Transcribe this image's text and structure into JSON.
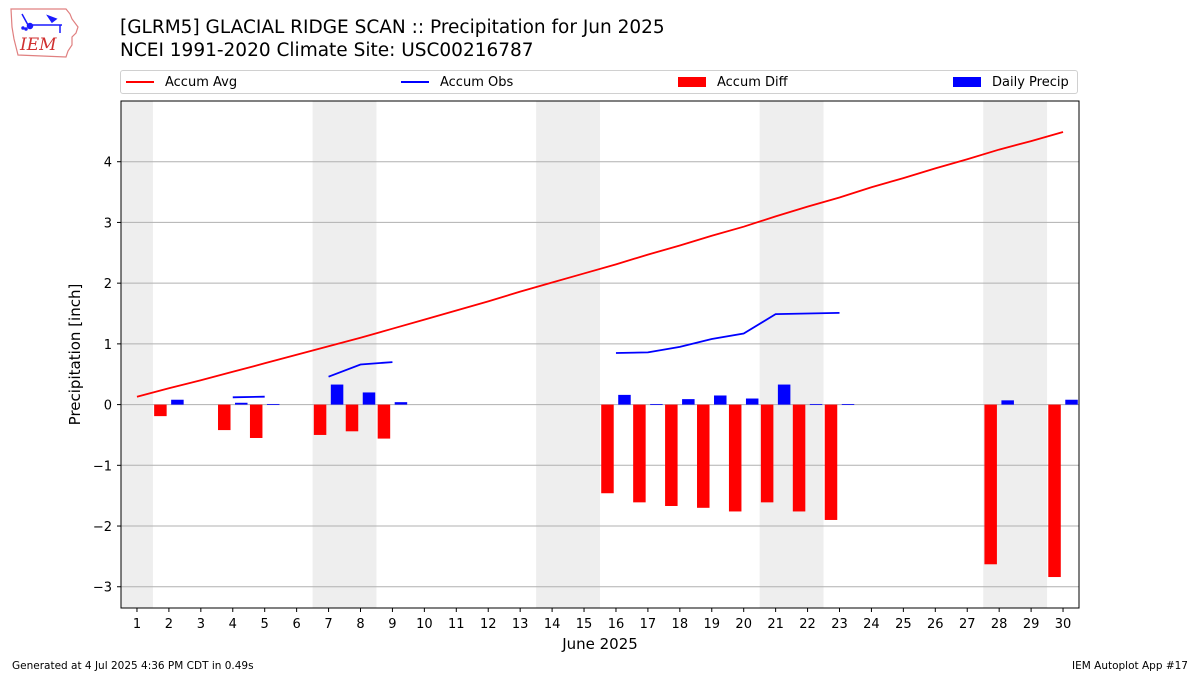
{
  "header": {
    "title_line1": "[GLRM5] GLACIAL RIDGE SCAN :: Precipitation for Jun 2025",
    "title_line2": "NCEI 1991-2020 Climate Site: USC00216787"
  },
  "logo": {
    "text": "IEM",
    "icon": "iowa-state-outline-logo"
  },
  "footer": {
    "left": "Generated at 4 Jul 2025 4:36 PM CDT in 0.49s",
    "right": "IEM Autoplot App #17"
  },
  "colors": {
    "avg": "#ff0000",
    "obs": "#0000ff",
    "diff": "#ff0000",
    "daily": "#0000ff",
    "weekend": "#eeeeee",
    "grid": "#b0b0b0"
  },
  "chart_data": {
    "type": "bar",
    "xlabel": "June 2025",
    "ylabel": "Precipitation [inch]",
    "xlim": [
      0.5,
      30.5
    ],
    "ylim": [
      -3.35,
      5.0
    ],
    "x_ticks": [
      1,
      2,
      3,
      4,
      5,
      6,
      7,
      8,
      9,
      10,
      11,
      12,
      13,
      14,
      15,
      16,
      17,
      18,
      19,
      20,
      21,
      22,
      23,
      24,
      25,
      26,
      27,
      28,
      29,
      30
    ],
    "y_ticks": [
      -3,
      -2,
      -1,
      0,
      1,
      2,
      3,
      4
    ],
    "grid": true,
    "legend_placement": "top",
    "weekend_days": [
      1,
      7,
      8,
      14,
      15,
      21,
      22,
      28,
      29
    ],
    "series": [
      {
        "name": "Accum Avg",
        "kind": "line",
        "x": [
          1,
          2,
          3,
          4,
          5,
          6,
          7,
          8,
          9,
          10,
          11,
          12,
          13,
          14,
          15,
          16,
          17,
          18,
          19,
          20,
          21,
          22,
          23,
          24,
          25,
          26,
          27,
          28,
          29,
          30
        ],
        "values": [
          0.13,
          0.27,
          0.4,
          0.54,
          0.68,
          0.82,
          0.96,
          1.1,
          1.25,
          1.4,
          1.55,
          1.7,
          1.86,
          2.01,
          2.16,
          2.31,
          2.47,
          2.62,
          2.78,
          2.93,
          3.1,
          3.26,
          3.41,
          3.58,
          3.73,
          3.89,
          4.04,
          4.2,
          4.34,
          4.49
        ]
      },
      {
        "name": "Accum Obs",
        "kind": "line",
        "segments": [
          {
            "x": [
              4,
              5
            ],
            "values": [
              0.12,
              0.13
            ]
          },
          {
            "x": [
              7,
              8,
              9
            ],
            "values": [
              0.46,
              0.66,
              0.7
            ]
          },
          {
            "x": [
              16,
              17,
              18,
              19,
              20,
              21,
              22,
              23
            ],
            "values": [
              0.85,
              0.86,
              0.95,
              1.08,
              1.17,
              1.49,
              1.5,
              1.51
            ]
          }
        ]
      },
      {
        "name": "Accum Diff",
        "kind": "bar",
        "x": [
          2,
          4,
          5,
          7,
          8,
          9,
          16,
          17,
          18,
          19,
          20,
          21,
          22,
          23,
          28,
          30
        ],
        "values": [
          -0.19,
          -0.42,
          -0.55,
          -0.5,
          -0.44,
          -0.56,
          -1.46,
          -1.61,
          -1.67,
          -1.7,
          -1.76,
          -1.61,
          -1.76,
          -1.9,
          -2.63,
          -2.84
        ]
      },
      {
        "name": "Daily Precip",
        "kind": "bar",
        "x": [
          2,
          4,
          5,
          7,
          8,
          9,
          16,
          17,
          18,
          19,
          20,
          21,
          22,
          23,
          28,
          30
        ],
        "values": [
          0.08,
          0.03,
          0.01,
          0.33,
          0.2,
          0.04,
          0.16,
          0.01,
          0.09,
          0.15,
          0.1,
          0.33,
          0.01,
          0.01,
          0.07,
          0.08
        ]
      }
    ]
  }
}
